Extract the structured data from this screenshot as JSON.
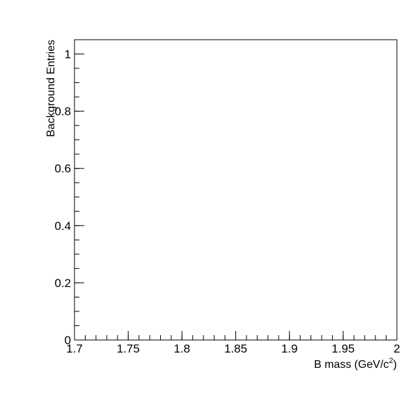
{
  "chart_data": {
    "type": "bar",
    "series": [],
    "xlabel": "B mass (GeV/c",
    "xlabel_superscript": "2",
    "xlabel_suffix": ")",
    "ylabel": "Background Entries",
    "xlim": [
      1.7,
      2.0
    ],
    "ylim": [
      0,
      1.05
    ],
    "x_ticks": [
      {
        "value": 1.7,
        "label": "1.7"
      },
      {
        "value": 1.75,
        "label": "1.75"
      },
      {
        "value": 1.8,
        "label": "1.8"
      },
      {
        "value": 1.85,
        "label": "1.85"
      },
      {
        "value": 1.9,
        "label": "1.9"
      },
      {
        "value": 1.95,
        "label": "1.95"
      },
      {
        "value": 2.0,
        "label": "2"
      }
    ],
    "y_ticks": [
      {
        "value": 0,
        "label": "0"
      },
      {
        "value": 0.2,
        "label": "0.2"
      },
      {
        "value": 0.4,
        "label": "0.4"
      },
      {
        "value": 0.6,
        "label": "0.6"
      },
      {
        "value": 0.8,
        "label": "0.8"
      },
      {
        "value": 1.0,
        "label": "1"
      }
    ],
    "x_minor_step": 0.01,
    "y_minor_step": 0.05,
    "grid": false,
    "legend": "none",
    "colors": {
      "axis": "#000000",
      "background": "#ffffff"
    }
  }
}
